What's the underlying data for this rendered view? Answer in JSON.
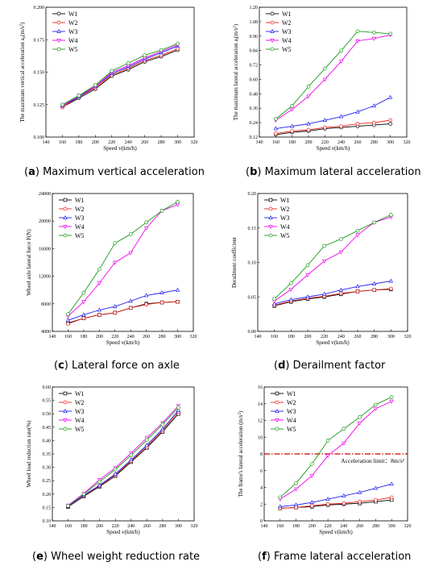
{
  "colors": {
    "W1": "#000000",
    "W2": "#e8231a",
    "W3": "#1f1ff0",
    "W4": "#ee00ee",
    "W5": "#1a9a1a",
    "limit": "#cc0000"
  },
  "chart_data": [
    {
      "panel": "a",
      "type": "line",
      "caption_letter": "a",
      "caption_text": "Maximum vertical acceleration",
      "xlabel": "Speed v(km/h)",
      "ylabel_parts": [
        "The maximum vertical acceleration a",
        "v",
        "(m/s",
        "2",
        ")"
      ],
      "xlim": [
        140,
        320
      ],
      "xticks": [
        140,
        160,
        180,
        200,
        220,
        240,
        260,
        280,
        300,
        320
      ],
      "ylim": [
        0.1,
        0.2
      ],
      "yticks": [
        0.1,
        0.125,
        0.15,
        0.175,
        0.2
      ],
      "ytick_labels": [
        "0.100",
        "0.125",
        "0.150",
        "0.175",
        "0.200"
      ],
      "x": [
        160,
        180,
        200,
        220,
        240,
        260,
        280,
        300
      ],
      "series": [
        {
          "name": "W1",
          "marker": "circle",
          "values": [
            0.123,
            0.13,
            0.137,
            0.147,
            0.152,
            0.158,
            0.162,
            0.167
          ]
        },
        {
          "name": "W2",
          "marker": "circle",
          "values": [
            0.123,
            0.131,
            0.138,
            0.148,
            0.153,
            0.159,
            0.163,
            0.168
          ]
        },
        {
          "name": "W3",
          "marker": "triangle",
          "values": [
            0.124,
            0.131,
            0.139,
            0.149,
            0.154,
            0.16,
            0.165,
            0.17
          ]
        },
        {
          "name": "W4",
          "marker": "triangle-down",
          "values": [
            0.124,
            0.132,
            0.139,
            0.15,
            0.155,
            0.161,
            0.166,
            0.171
          ]
        },
        {
          "name": "W5",
          "marker": "circle",
          "values": [
            0.125,
            0.132,
            0.14,
            0.151,
            0.157,
            0.163,
            0.167,
            0.172
          ]
        }
      ]
    },
    {
      "panel": "b",
      "type": "line",
      "caption_letter": "b",
      "caption_text": "Maximum lateral acceleration",
      "xlabel": "Speed v(km/h)",
      "ylabel_parts": [
        "The maximum  lateral acceleration a",
        "l",
        "(m/s",
        "2",
        ")"
      ],
      "xlim": [
        140,
        320
      ],
      "xticks": [
        140,
        160,
        180,
        200,
        220,
        240,
        260,
        280,
        300,
        320
      ],
      "ylim": [
        0.12,
        1.2
      ],
      "yticks": [
        0.12,
        0.24,
        0.36,
        0.48,
        0.6,
        0.72,
        0.84,
        0.96,
        1.08,
        1.2
      ],
      "ytick_labels": [
        "0.12",
        "0.24",
        "0.36",
        "0.48",
        "0.60",
        "0.72",
        "0.84",
        "0.96",
        "1.08",
        "1.20"
      ],
      "x": [
        160,
        180,
        200,
        220,
        240,
        260,
        280,
        300
      ],
      "series": [
        {
          "name": "W1",
          "marker": "circle",
          "values": [
            0.14,
            0.16,
            0.17,
            0.19,
            0.2,
            0.21,
            0.22,
            0.23
          ]
        },
        {
          "name": "W2",
          "marker": "circle",
          "values": [
            0.15,
            0.17,
            0.18,
            0.2,
            0.21,
            0.23,
            0.24,
            0.26
          ]
        },
        {
          "name": "W3",
          "marker": "triangle",
          "values": [
            0.19,
            0.21,
            0.23,
            0.26,
            0.29,
            0.33,
            0.38,
            0.45
          ]
        },
        {
          "name": "W4",
          "marker": "triangle-down",
          "values": [
            0.26,
            0.35,
            0.46,
            0.6,
            0.75,
            0.92,
            0.94,
            0.97
          ]
        },
        {
          "name": "W5",
          "marker": "circle",
          "values": [
            0.27,
            0.38,
            0.54,
            0.69,
            0.84,
            1.0,
            0.99,
            0.98
          ]
        }
      ]
    },
    {
      "panel": "c",
      "type": "line",
      "caption_letter": "c",
      "caption_text": "Lateral force on axle",
      "xlabel": "Speed v(km/h)",
      "ylabel_parts": [
        "Wheel axle lateral force  F(N)"
      ],
      "xlim": [
        140,
        320
      ],
      "xticks": [
        140,
        160,
        180,
        200,
        220,
        240,
        260,
        280,
        300,
        320
      ],
      "ylim": [
        4000,
        24000
      ],
      "yticks": [
        4000,
        8000,
        12000,
        16000,
        20000,
        24000
      ],
      "ytick_labels": [
        "4000",
        "8000",
        "12000",
        "16000",
        "20000",
        "24000"
      ],
      "x": [
        160,
        180,
        200,
        220,
        240,
        260,
        280,
        300
      ],
      "series": [
        {
          "name": "W1",
          "marker": "square",
          "values": [
            5200,
            5900,
            6400,
            6700,
            7400,
            8000,
            8200,
            8300
          ]
        },
        {
          "name": "W2",
          "marker": "circle",
          "values": [
            5100,
            5900,
            6400,
            6700,
            7400,
            7900,
            8200,
            8300
          ]
        },
        {
          "name": "W3",
          "marker": "triangle",
          "values": [
            5600,
            6400,
            7100,
            7600,
            8400,
            9200,
            9600,
            10000
          ]
        },
        {
          "name": "W4",
          "marker": "triangle-down",
          "values": [
            6200,
            8300,
            11000,
            14000,
            15400,
            19000,
            21500,
            22400
          ]
        },
        {
          "name": "W5",
          "marker": "circle",
          "values": [
            6500,
            9600,
            13000,
            16800,
            18100,
            19800,
            21500,
            22800
          ]
        }
      ]
    },
    {
      "panel": "d",
      "type": "line",
      "caption_letter": "d",
      "caption_text": "Derailment factor",
      "xlabel": "Speed v(km/h)",
      "ylabel_parts": [
        "Derailment coefficient"
      ],
      "xlim": [
        140,
        320
      ],
      "xticks": [
        140,
        160,
        180,
        200,
        220,
        240,
        260,
        280,
        300,
        320
      ],
      "ylim": [
        0,
        0.2
      ],
      "yticks": [
        0,
        0.05,
        0.1,
        0.15,
        0.2
      ],
      "ytick_labels": [
        "0.00",
        "0.05",
        "0.10",
        "0.15",
        "0.20"
      ],
      "x": [
        160,
        180,
        200,
        220,
        240,
        260,
        280,
        300
      ],
      "series": [
        {
          "name": "W1",
          "marker": "square",
          "values": [
            0.037,
            0.043,
            0.047,
            0.05,
            0.054,
            0.058,
            0.06,
            0.061
          ]
        },
        {
          "name": "W2",
          "marker": "circle",
          "values": [
            0.038,
            0.044,
            0.048,
            0.051,
            0.055,
            0.058,
            0.06,
            0.062
          ]
        },
        {
          "name": "W3",
          "marker": "triangle",
          "values": [
            0.04,
            0.046,
            0.05,
            0.054,
            0.06,
            0.065,
            0.069,
            0.073
          ]
        },
        {
          "name": "W4",
          "marker": "triangle-down",
          "values": [
            0.044,
            0.061,
            0.082,
            0.102,
            0.115,
            0.14,
            0.158,
            0.166
          ]
        },
        {
          "name": "W5",
          "marker": "circle",
          "values": [
            0.047,
            0.07,
            0.096,
            0.124,
            0.134,
            0.146,
            0.158,
            0.169
          ]
        }
      ]
    },
    {
      "panel": "e",
      "type": "line",
      "caption_letter": "e",
      "caption_text": "Wheel weight reduction rate",
      "xlabel": "Speed v(km/h)",
      "ylabel_parts": [
        "Wheel load reduction rate(%)"
      ],
      "xlim": [
        140,
        320
      ],
      "xticks": [
        140,
        160,
        180,
        200,
        220,
        240,
        260,
        280,
        300,
        320
      ],
      "ylim": [
        0.1,
        0.6
      ],
      "yticks": [
        0.1,
        0.15,
        0.2,
        0.25,
        0.3,
        0.35,
        0.4,
        0.45,
        0.5,
        0.55,
        0.6
      ],
      "ytick_labels": [
        "0.10",
        "0.15",
        "0.20",
        "0.25",
        "0.30",
        "0.35",
        "0.40",
        "0.45",
        "0.50",
        "0.55",
        "0.60"
      ],
      "x": [
        160,
        180,
        200,
        220,
        240,
        260,
        280,
        300
      ],
      "series": [
        {
          "name": "W1",
          "marker": "square",
          "values": [
            0.152,
            0.192,
            0.228,
            0.268,
            0.32,
            0.373,
            0.433,
            0.5
          ]
        },
        {
          "name": "W2",
          "marker": "circle",
          "values": [
            0.153,
            0.194,
            0.231,
            0.272,
            0.324,
            0.378,
            0.438,
            0.507
          ]
        },
        {
          "name": "W3",
          "marker": "triangle",
          "values": [
            0.154,
            0.196,
            0.233,
            0.275,
            0.328,
            0.383,
            0.443,
            0.513
          ]
        },
        {
          "name": "W4",
          "marker": "triangle-down",
          "values": [
            0.158,
            0.202,
            0.254,
            0.298,
            0.353,
            0.41,
            0.466,
            0.53
          ]
        },
        {
          "name": "W5",
          "marker": "circle",
          "values": [
            0.156,
            0.2,
            0.246,
            0.292,
            0.345,
            0.402,
            0.46,
            0.523
          ]
        }
      ]
    },
    {
      "panel": "f",
      "type": "line",
      "caption_letter": "f",
      "caption_text": "Frame lateral acceleration",
      "xlabel": "Speed v(km/h)",
      "ylabel_parts": [
        "The frame's lateral acceleration (m/s",
        "2",
        ")"
      ],
      "xlim": [
        140,
        320
      ],
      "xticks": [
        140,
        160,
        180,
        200,
        220,
        240,
        260,
        280,
        300,
        320
      ],
      "ylim": [
        0,
        16
      ],
      "yticks": [
        0,
        2,
        4,
        6,
        8,
        10,
        12,
        14,
        16
      ],
      "ytick_labels": [
        "0",
        "2",
        "4",
        "6",
        "8",
        "10",
        "12",
        "14",
        "16"
      ],
      "x": [
        160,
        180,
        200,
        220,
        240,
        260,
        280,
        300
      ],
      "limit_line": {
        "y": 8,
        "label": "Acceleration limit：8m/s²"
      },
      "series": [
        {
          "name": "W1",
          "marker": "square",
          "values": [
            1.5,
            1.6,
            1.7,
            1.9,
            2.0,
            2.1,
            2.3,
            2.5
          ]
        },
        {
          "name": "W2",
          "marker": "circle",
          "values": [
            1.5,
            1.6,
            1.8,
            2.0,
            2.1,
            2.3,
            2.5,
            2.8
          ]
        },
        {
          "name": "W3",
          "marker": "triangle",
          "values": [
            1.7,
            1.9,
            2.2,
            2.6,
            3.0,
            3.4,
            3.9,
            4.4
          ]
        },
        {
          "name": "W4",
          "marker": "triangle-down",
          "values": [
            2.6,
            3.8,
            5.4,
            7.8,
            9.3,
            11.7,
            13.4,
            14.3
          ]
        },
        {
          "name": "W5",
          "marker": "circle",
          "values": [
            2.8,
            4.5,
            6.8,
            9.6,
            11.0,
            12.4,
            13.9,
            14.8
          ]
        }
      ]
    }
  ]
}
